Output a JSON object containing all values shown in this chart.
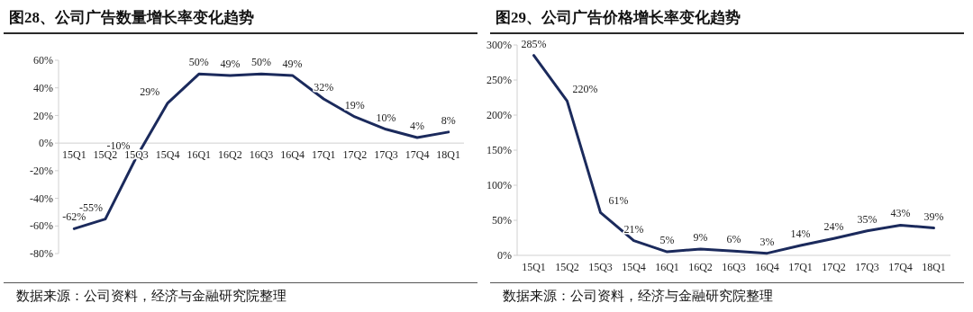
{
  "chart_data": [
    {
      "type": "line",
      "title": "图28、公司广告数量增长率变化趋势",
      "categories": [
        "15Q1",
        "15Q2",
        "15Q3",
        "15Q4",
        "16Q1",
        "16Q2",
        "16Q3",
        "16Q4",
        "17Q1",
        "17Q2",
        "17Q3",
        "17Q4",
        "18Q1"
      ],
      "series": [
        {
          "color": "#1b2a5c",
          "values": [
            -62,
            -55,
            -10,
            29,
            50,
            49,
            50,
            49,
            32,
            19,
            10,
            4,
            8
          ],
          "value_labels": [
            "-62%",
            "-55%",
            "-10%",
            "29%",
            "50%",
            "49%",
            "50%",
            "49%",
            "32%",
            "19%",
            "10%",
            "4%",
            "8%"
          ]
        }
      ],
      "ylim": [
        -80,
        60
      ],
      "yticks": [
        {
          "value": -80,
          "label": "-80%"
        },
        {
          "value": -60,
          "label": "-60%"
        },
        {
          "value": -40,
          "label": "-40%"
        },
        {
          "value": -20,
          "label": "-20%"
        },
        {
          "value": 0,
          "label": "0%"
        },
        {
          "value": 20,
          "label": "20%"
        },
        {
          "value": 40,
          "label": "40%"
        },
        {
          "value": 60,
          "label": "60%"
        }
      ],
      "grid": false,
      "marker": "none",
      "line_style": "solid",
      "annotations": [
        "数据来源：公司资料，经济与金融研究院整理"
      ]
    },
    {
      "type": "line",
      "title": "图29、公司广告价格增长率变化趋势",
      "categories": [
        "15Q1",
        "15Q2",
        "15Q3",
        "15Q4",
        "16Q1",
        "16Q2",
        "16Q3",
        "16Q4",
        "17Q1",
        "17Q2",
        "17Q3",
        "17Q4",
        "18Q1"
      ],
      "series": [
        {
          "color": "#1b2a5c",
          "values": [
            285,
            220,
            61,
            21,
            5,
            9,
            6,
            3,
            14,
            24,
            35,
            43,
            39
          ],
          "value_labels": [
            "285%",
            "220%",
            "61%",
            "21%",
            "5%",
            "9%",
            "6%",
            "3%",
            "14%",
            "24%",
            "35%",
            "43%",
            "39%"
          ]
        }
      ],
      "ylim": [
        0,
        300
      ],
      "yticks": [
        {
          "value": 0,
          "label": "0%"
        },
        {
          "value": 50,
          "label": "50%"
        },
        {
          "value": 100,
          "label": "100%"
        },
        {
          "value": 150,
          "label": "150%"
        },
        {
          "value": 200,
          "label": "200%"
        },
        {
          "value": 250,
          "label": "250%"
        },
        {
          "value": 300,
          "label": "300%"
        }
      ],
      "grid": false,
      "marker": "none",
      "line_style": "solid",
      "annotations": [
        "数据来源：公司资料，经济与金融研究院整理"
      ]
    }
  ]
}
